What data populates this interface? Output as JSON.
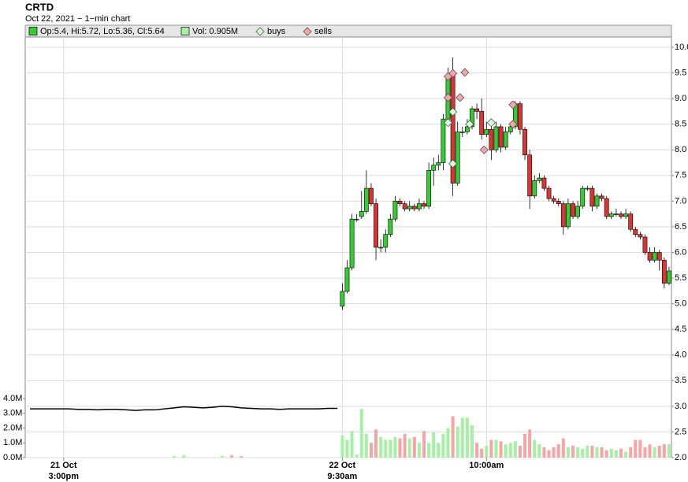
{
  "chart_data": {
    "type": "candlestick",
    "title": "CRTD",
    "subtitle": "Oct 22, 2021 − 1−min chart",
    "legend": {
      "ohlc": "Op:5.4, Hi:5.72, Lo:5.36, Cl:5.64",
      "volume": "Vol: 0.905M",
      "buys": "buys",
      "sells": "sells"
    },
    "xlim": [
      -66,
      68.5
    ],
    "xticks": [
      {
        "value": -58,
        "label": "21 Oct",
        "sublabel": "3:00pm"
      },
      {
        "value": 0,
        "label": "22 Oct",
        "sublabel": "9:30am"
      },
      {
        "value": 30,
        "label": "10:00am"
      }
    ],
    "ylim": [
      2,
      10
    ],
    "yticks": [
      {
        "value": 2,
        "label": "2.0"
      },
      2.5,
      {
        "value": 3,
        "label": "3.0"
      },
      3.5,
      {
        "value": 4,
        "label": "4.0"
      },
      4.5,
      {
        "value": 5,
        "label": "5.0"
      },
      5.5,
      {
        "value": 6,
        "label": "6.0"
      },
      6.5,
      {
        "value": 7,
        "label": "7.0"
      },
      7.5,
      {
        "value": 8,
        "label": "8.0"
      },
      8.5,
      {
        "value": 9,
        "label": "9.0"
      },
      9.5,
      {
        "value": 10,
        "label": "10.0"
      }
    ],
    "y2lim": [
      0,
      4
    ],
    "y2ticks": [
      {
        "value": 0,
        "label": "0.0M"
      },
      {
        "value": 1,
        "label": "1.0M"
      },
      {
        "value": 2,
        "label": "2.0M"
      },
      {
        "value": 3,
        "label": "3.0M"
      },
      {
        "value": 4,
        "label": "4.0M"
      }
    ],
    "grid": true,
    "colors": {
      "up": "#33cc33",
      "down": "#dd3333",
      "vol_up": "#a6f0a6",
      "vol_down": "#f4a6a6",
      "buy": "#d8ffd8",
      "sell": "#f4a6a6",
      "line": "#000000"
    },
    "candles": {
      "x": [
        0,
        1,
        2,
        3,
        4,
        5,
        6,
        7,
        8,
        9,
        10,
        11,
        12,
        13,
        14,
        15,
        16,
        17,
        18,
        19,
        20,
        21,
        22,
        23,
        24,
        25,
        26,
        27,
        28,
        29,
        30,
        31,
        32,
        33,
        34,
        35,
        36,
        37,
        38,
        39,
        40,
        41,
        42,
        43,
        44,
        45,
        46,
        47,
        48,
        49,
        50,
        51,
        52,
        53,
        54,
        55,
        56,
        57,
        58,
        59,
        60,
        61,
        62,
        63,
        64,
        65,
        66,
        67,
        68
      ],
      "open": [
        4.95,
        5.24,
        5.7,
        6.65,
        6.7,
        6.8,
        7.25,
        6.95,
        6.1,
        6.1,
        6.35,
        6.65,
        7.0,
        6.95,
        6.85,
        6.9,
        6.85,
        6.95,
        6.9,
        7.6,
        7.7,
        7.75,
        8.6,
        9.45,
        7.35,
        8.35,
        8.35,
        8.45,
        8.8,
        8.75,
        8.3,
        8.4,
        8.0,
        8.45,
        8.05,
        8.35,
        8.45,
        8.9,
        8.4,
        7.9,
        7.1,
        7.4,
        7.45,
        7.25,
        7.05,
        7.0,
        6.95,
        6.5,
        6.95,
        6.7,
        6.9,
        7.25,
        7.25,
        6.9,
        7.1,
        7.05,
        6.7,
        6.75,
        6.75,
        6.7,
        6.75,
        6.45,
        6.35,
        6.3,
        6.0,
        5.85,
        6.0,
        5.85,
        5.4
      ],
      "high": [
        5.4,
        5.85,
        6.75,
        6.75,
        7.2,
        7.6,
        7.35,
        7.05,
        6.25,
        6.45,
        6.75,
        7.1,
        7.05,
        7.0,
        7.0,
        6.95,
        7.05,
        7.0,
        7.75,
        7.85,
        7.9,
        8.7,
        9.6,
        9.8,
        8.55,
        8.45,
        8.6,
        8.85,
        8.9,
        9.0,
        8.55,
        8.5,
        8.55,
        8.5,
        8.45,
        8.5,
        8.95,
        8.95,
        8.45,
        8.0,
        7.5,
        7.55,
        7.5,
        7.3,
        7.1,
        7.05,
        7.0,
        7.05,
        7.0,
        7.0,
        7.3,
        7.3,
        7.3,
        7.15,
        7.15,
        7.1,
        6.8,
        6.85,
        6.8,
        6.85,
        6.8,
        6.5,
        6.4,
        6.35,
        6.1,
        6.1,
        6.05,
        5.9,
        5.72
      ],
      "low": [
        4.88,
        5.2,
        5.65,
        6.6,
        6.65,
        6.75,
        6.9,
        5.85,
        6.0,
        6.0,
        6.3,
        6.6,
        6.9,
        6.8,
        6.8,
        6.8,
        6.8,
        6.85,
        6.85,
        7.3,
        7.6,
        7.6,
        8.5,
        7.1,
        7.3,
        8.25,
        8.3,
        8.4,
        8.6,
        8.2,
        8.25,
        7.8,
        7.95,
        7.95,
        8.0,
        8.3,
        8.4,
        8.3,
        7.8,
        6.85,
        7.05,
        7.35,
        7.2,
        7.0,
        6.95,
        6.9,
        6.35,
        6.45,
        6.65,
        6.65,
        6.85,
        7.2,
        6.8,
        6.85,
        7.0,
        6.65,
        6.65,
        6.7,
        6.65,
        6.65,
        6.4,
        6.3,
        6.25,
        5.95,
        5.8,
        5.8,
        5.65,
        5.3,
        5.36
      ],
      "close": [
        5.24,
        5.7,
        6.65,
        6.65,
        6.8,
        7.25,
        6.95,
        6.1,
        6.1,
        6.35,
        6.65,
        7.0,
        6.95,
        6.85,
        6.9,
        6.85,
        6.95,
        6.9,
        7.6,
        7.7,
        7.75,
        8.6,
        9.45,
        7.35,
        8.35,
        8.35,
        8.45,
        8.8,
        8.75,
        8.3,
        8.4,
        8.0,
        8.45,
        8.05,
        8.35,
        8.45,
        8.9,
        8.4,
        7.9,
        7.1,
        7.4,
        7.45,
        7.25,
        7.05,
        7.0,
        6.95,
        6.5,
        6.95,
        6.7,
        6.9,
        7.25,
        7.25,
        6.9,
        7.1,
        7.05,
        6.7,
        6.75,
        6.75,
        6.7,
        6.75,
        6.45,
        6.35,
        6.3,
        6.0,
        5.85,
        6.0,
        5.85,
        5.4,
        5.64
      ],
      "volume": [
        1.5,
        1.2,
        1.8,
        0.2,
        3.3,
        1.6,
        1.0,
        1.9,
        1.4,
        1.2,
        1.2,
        1.4,
        1.3,
        1.6,
        1.3,
        1.4,
        1.0,
        1.8,
        1.0,
        1.7,
        1.0,
        1.6,
        2.0,
        2.8,
        2.1,
        2.7,
        2.7,
        2.2,
        1.0,
        0.6,
        0.8,
        1.2,
        1.2,
        1.1,
        0.9,
        1.0,
        1.1,
        0.8,
        1.6,
        1.9,
        1.2,
        0.9,
        0.7,
        0.5,
        0.7,
        0.9,
        1.3,
        0.7,
        0.8,
        0.7,
        0.6,
        0.8,
        0.8,
        0.7,
        0.7,
        0.5,
        0.6,
        0.5,
        0.6,
        0.4,
        0.7,
        1.2,
        1.2,
        0.7,
        0.9,
        0.7,
        0.8,
        0.9,
        0.905
      ]
    },
    "previous": {
      "x": [
        -65,
        -63,
        -61,
        -59,
        -57,
        -55,
        -53,
        -51,
        -49,
        -47,
        -45,
        -43,
        -41,
        -39,
        -37,
        -35,
        -33,
        -31,
        -29,
        -27,
        -25,
        -23,
        -21,
        -19,
        -17,
        -15,
        -13,
        -11,
        -9,
        -7,
        -5,
        -3,
        -1
      ],
      "close": [
        2.95,
        2.95,
        2.95,
        2.95,
        2.95,
        2.94,
        2.94,
        2.93,
        2.94,
        2.94,
        2.93,
        2.92,
        2.93,
        2.93,
        2.95,
        2.97,
        2.99,
        2.98,
        2.97,
        2.98,
        3.0,
        2.99,
        2.97,
        2.96,
        2.95,
        2.95,
        2.94,
        2.95,
        2.95,
        2.95,
        2.95,
        2.96,
        2.96
      ],
      "volume": [
        0,
        0,
        0,
        0,
        0,
        0,
        0,
        0,
        0,
        0,
        0,
        0,
        0,
        0,
        0,
        0.1,
        0.15,
        0,
        0,
        0,
        0.12,
        0.15,
        0.1,
        0,
        0,
        0,
        0,
        0,
        0,
        0,
        0,
        0,
        0
      ]
    },
    "buys": {
      "x": [
        22,
        23,
        23,
        26.5,
        31
      ],
      "y": [
        8.53,
        8.74,
        7.73,
        8.5,
        8.53
      ]
    },
    "sells": {
      "x": [
        22,
        23,
        25.5,
        24.5,
        22,
        29.5,
        35.5,
        35.5
      ],
      "y": [
        9.43,
        9.49,
        9.51,
        9.02,
        9.02,
        8.0,
        8.88,
        8.5
      ]
    }
  }
}
